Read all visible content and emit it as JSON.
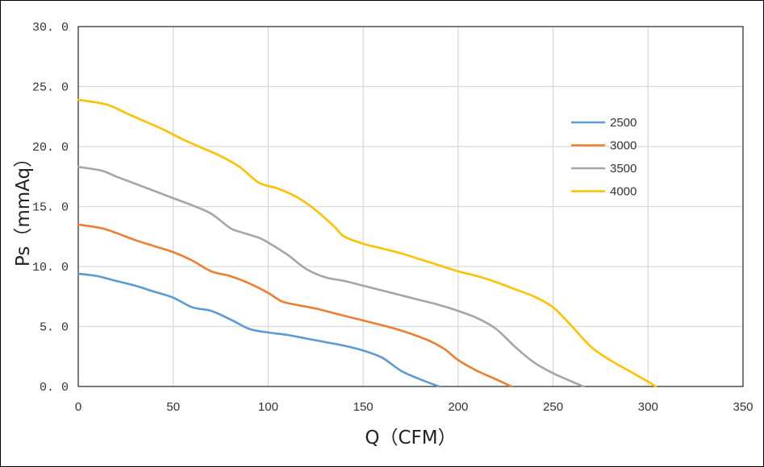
{
  "chart_data": {
    "type": "line",
    "title": "",
    "xlabel": "Q（CFM）",
    "ylabel": "Ps（mmAq）",
    "xlim": [
      0,
      350
    ],
    "ylim": [
      0,
      30
    ],
    "xticks": [
      0,
      50,
      100,
      150,
      200,
      250,
      300,
      350
    ],
    "yticks": [
      0,
      5,
      10,
      15,
      20,
      25,
      30
    ],
    "xtick_labels": [
      "0",
      "50",
      "100",
      "150",
      "200",
      "250",
      "300",
      "350"
    ],
    "ytick_labels": [
      "0. 0",
      "5. 0",
      "10. 0",
      "15. 0",
      "20. 0",
      "25. 0",
      "30. 0"
    ],
    "grid": true,
    "legend_position": "right",
    "series": [
      {
        "name": "2500",
        "color": "#5B9BD5",
        "points": [
          [
            0,
            9.4
          ],
          [
            10,
            9.2
          ],
          [
            20,
            8.8
          ],
          [
            30,
            8.4
          ],
          [
            40,
            7.9
          ],
          [
            50,
            7.4
          ],
          [
            60,
            6.6
          ],
          [
            70,
            6.3
          ],
          [
            80,
            5.6
          ],
          [
            90,
            4.8
          ],
          [
            100,
            4.5
          ],
          [
            110,
            4.3
          ],
          [
            120,
            4.0
          ],
          [
            130,
            3.7
          ],
          [
            140,
            3.4
          ],
          [
            150,
            3.0
          ],
          [
            160,
            2.4
          ],
          [
            170,
            1.3
          ],
          [
            180,
            0.6
          ],
          [
            190,
            0.0
          ]
        ]
      },
      {
        "name": "3000",
        "color": "#ED7D31",
        "points": [
          [
            0,
            13.5
          ],
          [
            12,
            13.2
          ],
          [
            20,
            12.8
          ],
          [
            30,
            12.2
          ],
          [
            40,
            11.7
          ],
          [
            50,
            11.2
          ],
          [
            60,
            10.5
          ],
          [
            70,
            9.6
          ],
          [
            80,
            9.2
          ],
          [
            90,
            8.6
          ],
          [
            100,
            7.8
          ],
          [
            107,
            7.1
          ],
          [
            115,
            6.8
          ],
          [
            125,
            6.5
          ],
          [
            135,
            6.1
          ],
          [
            145,
            5.7
          ],
          [
            155,
            5.3
          ],
          [
            165,
            4.9
          ],
          [
            175,
            4.4
          ],
          [
            185,
            3.8
          ],
          [
            193,
            3.1
          ],
          [
            200,
            2.2
          ],
          [
            210,
            1.3
          ],
          [
            220,
            0.6
          ],
          [
            228,
            0.0
          ]
        ]
      },
      {
        "name": "3500",
        "color": "#A5A5A5",
        "points": [
          [
            0,
            18.3
          ],
          [
            12,
            18.0
          ],
          [
            20,
            17.5
          ],
          [
            30,
            16.9
          ],
          [
            40,
            16.3
          ],
          [
            50,
            15.7
          ],
          [
            60,
            15.1
          ],
          [
            70,
            14.4
          ],
          [
            80,
            13.2
          ],
          [
            85,
            12.9
          ],
          [
            95,
            12.4
          ],
          [
            100,
            12.0
          ],
          [
            110,
            11.0
          ],
          [
            120,
            9.8
          ],
          [
            130,
            9.1
          ],
          [
            140,
            8.8
          ],
          [
            150,
            8.4
          ],
          [
            160,
            8.0
          ],
          [
            170,
            7.6
          ],
          [
            180,
            7.2
          ],
          [
            190,
            6.8
          ],
          [
            200,
            6.3
          ],
          [
            210,
            5.7
          ],
          [
            220,
            4.8
          ],
          [
            230,
            3.3
          ],
          [
            240,
            2.0
          ],
          [
            250,
            1.1
          ],
          [
            260,
            0.4
          ],
          [
            266,
            0.0
          ]
        ]
      },
      {
        "name": "4000",
        "color": "#FFC000",
        "points": [
          [
            0,
            23.9
          ],
          [
            15,
            23.5
          ],
          [
            25,
            22.8
          ],
          [
            35,
            22.1
          ],
          [
            45,
            21.4
          ],
          [
            55,
            20.6
          ],
          [
            65,
            19.9
          ],
          [
            75,
            19.2
          ],
          [
            85,
            18.3
          ],
          [
            95,
            17.0
          ],
          [
            105,
            16.5
          ],
          [
            115,
            15.8
          ],
          [
            125,
            14.7
          ],
          [
            135,
            13.3
          ],
          [
            140,
            12.5
          ],
          [
            150,
            11.9
          ],
          [
            160,
            11.5
          ],
          [
            170,
            11.1
          ],
          [
            180,
            10.6
          ],
          [
            190,
            10.1
          ],
          [
            200,
            9.6
          ],
          [
            210,
            9.2
          ],
          [
            220,
            8.7
          ],
          [
            230,
            8.1
          ],
          [
            240,
            7.5
          ],
          [
            250,
            6.6
          ],
          [
            260,
            5.0
          ],
          [
            270,
            3.3
          ],
          [
            280,
            2.2
          ],
          [
            290,
            1.3
          ],
          [
            300,
            0.4
          ],
          [
            304,
            0.0
          ]
        ]
      }
    ]
  }
}
